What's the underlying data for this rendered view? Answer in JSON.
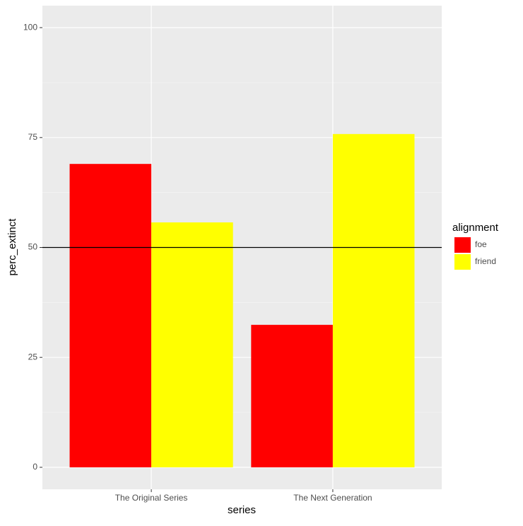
{
  "chart_data": {
    "type": "bar",
    "x_label": "series",
    "y_label": "perc_extinct",
    "categories": [
      "The Original Series",
      "The Next Generation"
    ],
    "legend_title": "alignment",
    "series": [
      {
        "name": "foe",
        "color": "#ff0000",
        "values": [
          69,
          32.4
        ]
      },
      {
        "name": "friend",
        "color": "#ffff00",
        "values": [
          55.7,
          75.8
        ]
      }
    ],
    "hline": 50,
    "ylim": [
      -5,
      105
    ],
    "yticks": [
      0,
      25,
      50,
      75,
      100
    ],
    "grid": true,
    "legend": "right"
  }
}
